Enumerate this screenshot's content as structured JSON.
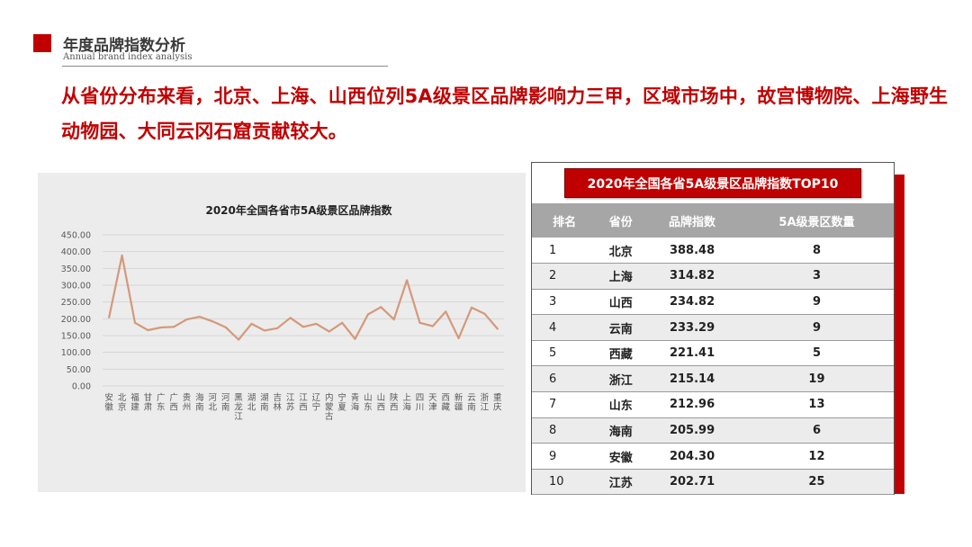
{
  "header": {
    "title": "年度品牌指数分析",
    "subtitle": "Annual brand index analysis"
  },
  "headline": "从省份分布来看，北京、上海、山西位列5A级景区品牌影响力三甲，区域市场中，故宫博物院、上海野生动物园、大同云冈石窟贡献较大。",
  "colors": {
    "accent": "#c00000",
    "line": "#d4997a",
    "panel": "#ececec",
    "table_header": "#a6a6a6"
  },
  "chart_data": {
    "type": "line",
    "title": "2020年全国各省市5A级景区品牌指数",
    "xlabel": "",
    "ylabel": "",
    "ylim": [
      0,
      450
    ],
    "yticks": [
      "0.00",
      "50.00",
      "100.00",
      "150.00",
      "200.00",
      "250.00",
      "300.00",
      "350.00",
      "400.00",
      "450.00"
    ],
    "grid": true,
    "categories": [
      "安徽",
      "北京",
      "福建",
      "甘肃",
      "广东",
      "广西",
      "贵州",
      "海南",
      "河北",
      "河南",
      "黑龙江",
      "湖北",
      "湖南",
      "吉林",
      "江苏",
      "江西",
      "辽宁",
      "内蒙古",
      "宁夏",
      "青海",
      "山东",
      "山西",
      "陕西",
      "上海",
      "四川",
      "天津",
      "西藏",
      "新疆",
      "云南",
      "浙江",
      "重庆"
    ],
    "series": [
      {
        "values": [
          204.3,
          388.48,
          188,
          166,
          174,
          176,
          198,
          205.99,
          192,
          175,
          138,
          185,
          165,
          172,
          202.71,
          176,
          185,
          162,
          188,
          140,
          212.96,
          234.82,
          198,
          314.82,
          188,
          178,
          221.41,
          142,
          233.29,
          215.14,
          170
        ]
      }
    ]
  },
  "table": {
    "title": "2020年全国各省5A级景区品牌指数TOP10",
    "headers": [
      "排名",
      "省份",
      "品牌指数",
      "5A级景区数量"
    ],
    "rows": [
      [
        "1",
        "北京",
        "388.48",
        "8"
      ],
      [
        "2",
        "上海",
        "314.82",
        "3"
      ],
      [
        "3",
        "山西",
        "234.82",
        "9"
      ],
      [
        "4",
        "云南",
        "233.29",
        "9"
      ],
      [
        "5",
        "西藏",
        "221.41",
        "5"
      ],
      [
        "6",
        "浙江",
        "215.14",
        "19"
      ],
      [
        "7",
        "山东",
        "212.96",
        "13"
      ],
      [
        "8",
        "海南",
        "205.99",
        "6"
      ],
      [
        "9",
        "安徽",
        "204.30",
        "12"
      ],
      [
        "10",
        "江苏",
        "202.71",
        "25"
      ]
    ]
  }
}
